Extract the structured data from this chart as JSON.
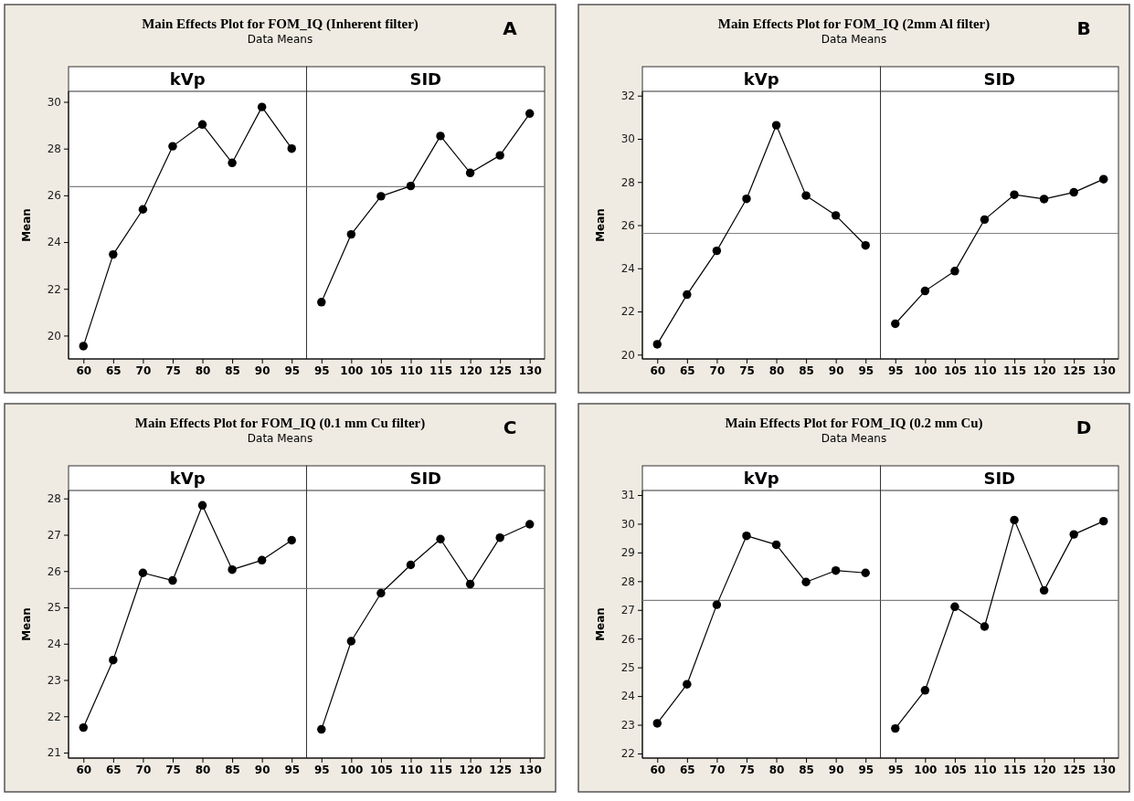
{
  "chart_data": [
    {
      "type": "line",
      "title": "Main Effects Plot for FOM_IQ (Inherent filter)",
      "subtitle": "Data Means",
      "annotations": [
        "A"
      ],
      "xlabel": "kVp",
      "ylabel": "Mean",
      "categories": [
        "60",
        "65",
        "70",
        "75",
        "80",
        "85",
        "90",
        "95"
      ],
      "values": [
        19.55,
        23.47,
        25.4,
        28.1,
        29.03,
        27.39,
        29.78,
        28.0
      ],
      "color": "#000000",
      "marker": "circle",
      "line_style": "solid",
      "ylim": [
        19,
        30.45
      ],
      "yticks": [
        20,
        22,
        24,
        26,
        28,
        30
      ],
      "ref_lines": [
        {
          "axis": "y",
          "value": 26.37,
          "color": "#808080"
        }
      ]
    },
    {
      "type": "line",
      "xlabel": "SID",
      "categories": [
        "95",
        "100",
        "105",
        "110",
        "115",
        "120",
        "125",
        "130"
      ],
      "values": [
        21.43,
        24.33,
        25.96,
        26.4,
        28.54,
        26.96,
        27.71,
        29.5
      ],
      "color": "#000000",
      "marker": "circle",
      "line_style": "solid",
      "ylim": [
        19,
        30.45
      ],
      "tick_labels": "x",
      "ref_lines": [
        {
          "axis": "y",
          "value": 26.37,
          "color": "#808080"
        }
      ]
    },
    {
      "type": "line",
      "title": "Main Effects Plot for FOM_IQ  (2mm Al filter)",
      "subtitle": "Data Means",
      "annotations": [
        "B"
      ],
      "xlabel": "kVp",
      "ylabel": "Mean",
      "categories": [
        "60",
        "65",
        "70",
        "75",
        "80",
        "85",
        "90",
        "95"
      ],
      "values": [
        20.48,
        22.78,
        24.81,
        27.22,
        30.63,
        27.37,
        26.45,
        25.06
      ],
      "color": "#000000",
      "marker": "circle",
      "line_style": "solid",
      "ylim": [
        19.8,
        32.2
      ],
      "yticks": [
        20,
        22,
        24,
        26,
        28,
        30,
        32
      ],
      "ref_lines": [
        {
          "axis": "y",
          "value": 25.62,
          "color": "#808080"
        }
      ]
    },
    {
      "type": "line",
      "xlabel": "SID",
      "categories": [
        "95",
        "100",
        "105",
        "110",
        "115",
        "120",
        "125",
        "130"
      ],
      "values": [
        21.43,
        22.95,
        23.87,
        26.26,
        27.41,
        27.21,
        27.52,
        28.13
      ],
      "color": "#000000",
      "marker": "circle",
      "line_style": "solid",
      "ylim": [
        19.8,
        32.2
      ],
      "tick_labels": "x",
      "ref_lines": [
        {
          "axis": "y",
          "value": 25.62,
          "color": "#808080"
        }
      ]
    },
    {
      "type": "line",
      "title": "Main Effects Plot for FOM_IQ  (0.1 mm Cu filter)",
      "subtitle": "Data Means",
      "annotations": [
        "C"
      ],
      "xlabel": "kVp",
      "ylabel": "Mean",
      "categories": [
        "60",
        "65",
        "70",
        "75",
        "80",
        "85",
        "90",
        "95"
      ],
      "values": [
        21.69,
        23.55,
        25.95,
        25.74,
        27.81,
        26.04,
        26.3,
        26.85
      ],
      "color": "#000000",
      "marker": "circle",
      "line_style": "solid",
      "ylim": [
        20.85,
        28.22
      ],
      "yticks": [
        21,
        22,
        23,
        24,
        25,
        26,
        27,
        28
      ],
      "ref_lines": [
        {
          "axis": "y",
          "value": 25.52,
          "color": "#808080"
        }
      ]
    },
    {
      "type": "line",
      "xlabel": "SID",
      "categories": [
        "95",
        "100",
        "105",
        "110",
        "115",
        "120",
        "125",
        "130"
      ],
      "values": [
        21.64,
        24.07,
        25.39,
        26.17,
        26.88,
        25.64,
        26.92,
        27.29
      ],
      "color": "#000000",
      "marker": "circle",
      "line_style": "solid",
      "ylim": [
        20.85,
        28.22
      ],
      "tick_labels": "x",
      "ref_lines": [
        {
          "axis": "y",
          "value": 25.52,
          "color": "#808080"
        }
      ]
    },
    {
      "type": "line",
      "title": "Main Effects Plot for FOM_IQ  (0.2 mm Cu)",
      "subtitle": "Data Means",
      "annotations": [
        "D"
      ],
      "xlabel": "kVp",
      "ylabel": "Mean",
      "categories": [
        "60",
        "65",
        "70",
        "75",
        "80",
        "85",
        "90",
        "95"
      ],
      "values": [
        23.05,
        24.41,
        27.18,
        29.58,
        29.27,
        27.97,
        28.37,
        28.29
      ],
      "color": "#000000",
      "marker": "circle",
      "line_style": "solid",
      "ylim": [
        21.84,
        31.16
      ],
      "yticks": [
        22,
        23,
        24,
        25,
        26,
        27,
        28,
        29,
        30,
        31
      ],
      "ref_lines": [
        {
          "axis": "y",
          "value": 27.33,
          "color": "#808080"
        }
      ]
    },
    {
      "type": "line",
      "xlabel": "SID",
      "categories": [
        "95",
        "100",
        "105",
        "110",
        "115",
        "120",
        "125",
        "130"
      ],
      "values": [
        22.87,
        24.2,
        27.11,
        26.42,
        30.13,
        27.68,
        29.63,
        30.09
      ],
      "color": "#000000",
      "marker": "circle",
      "line_style": "solid",
      "ylim": [
        21.84,
        31.16
      ],
      "tick_labels": "x",
      "ref_lines": [
        {
          "axis": "y",
          "value": 27.33,
          "color": "#808080"
        }
      ]
    }
  ]
}
